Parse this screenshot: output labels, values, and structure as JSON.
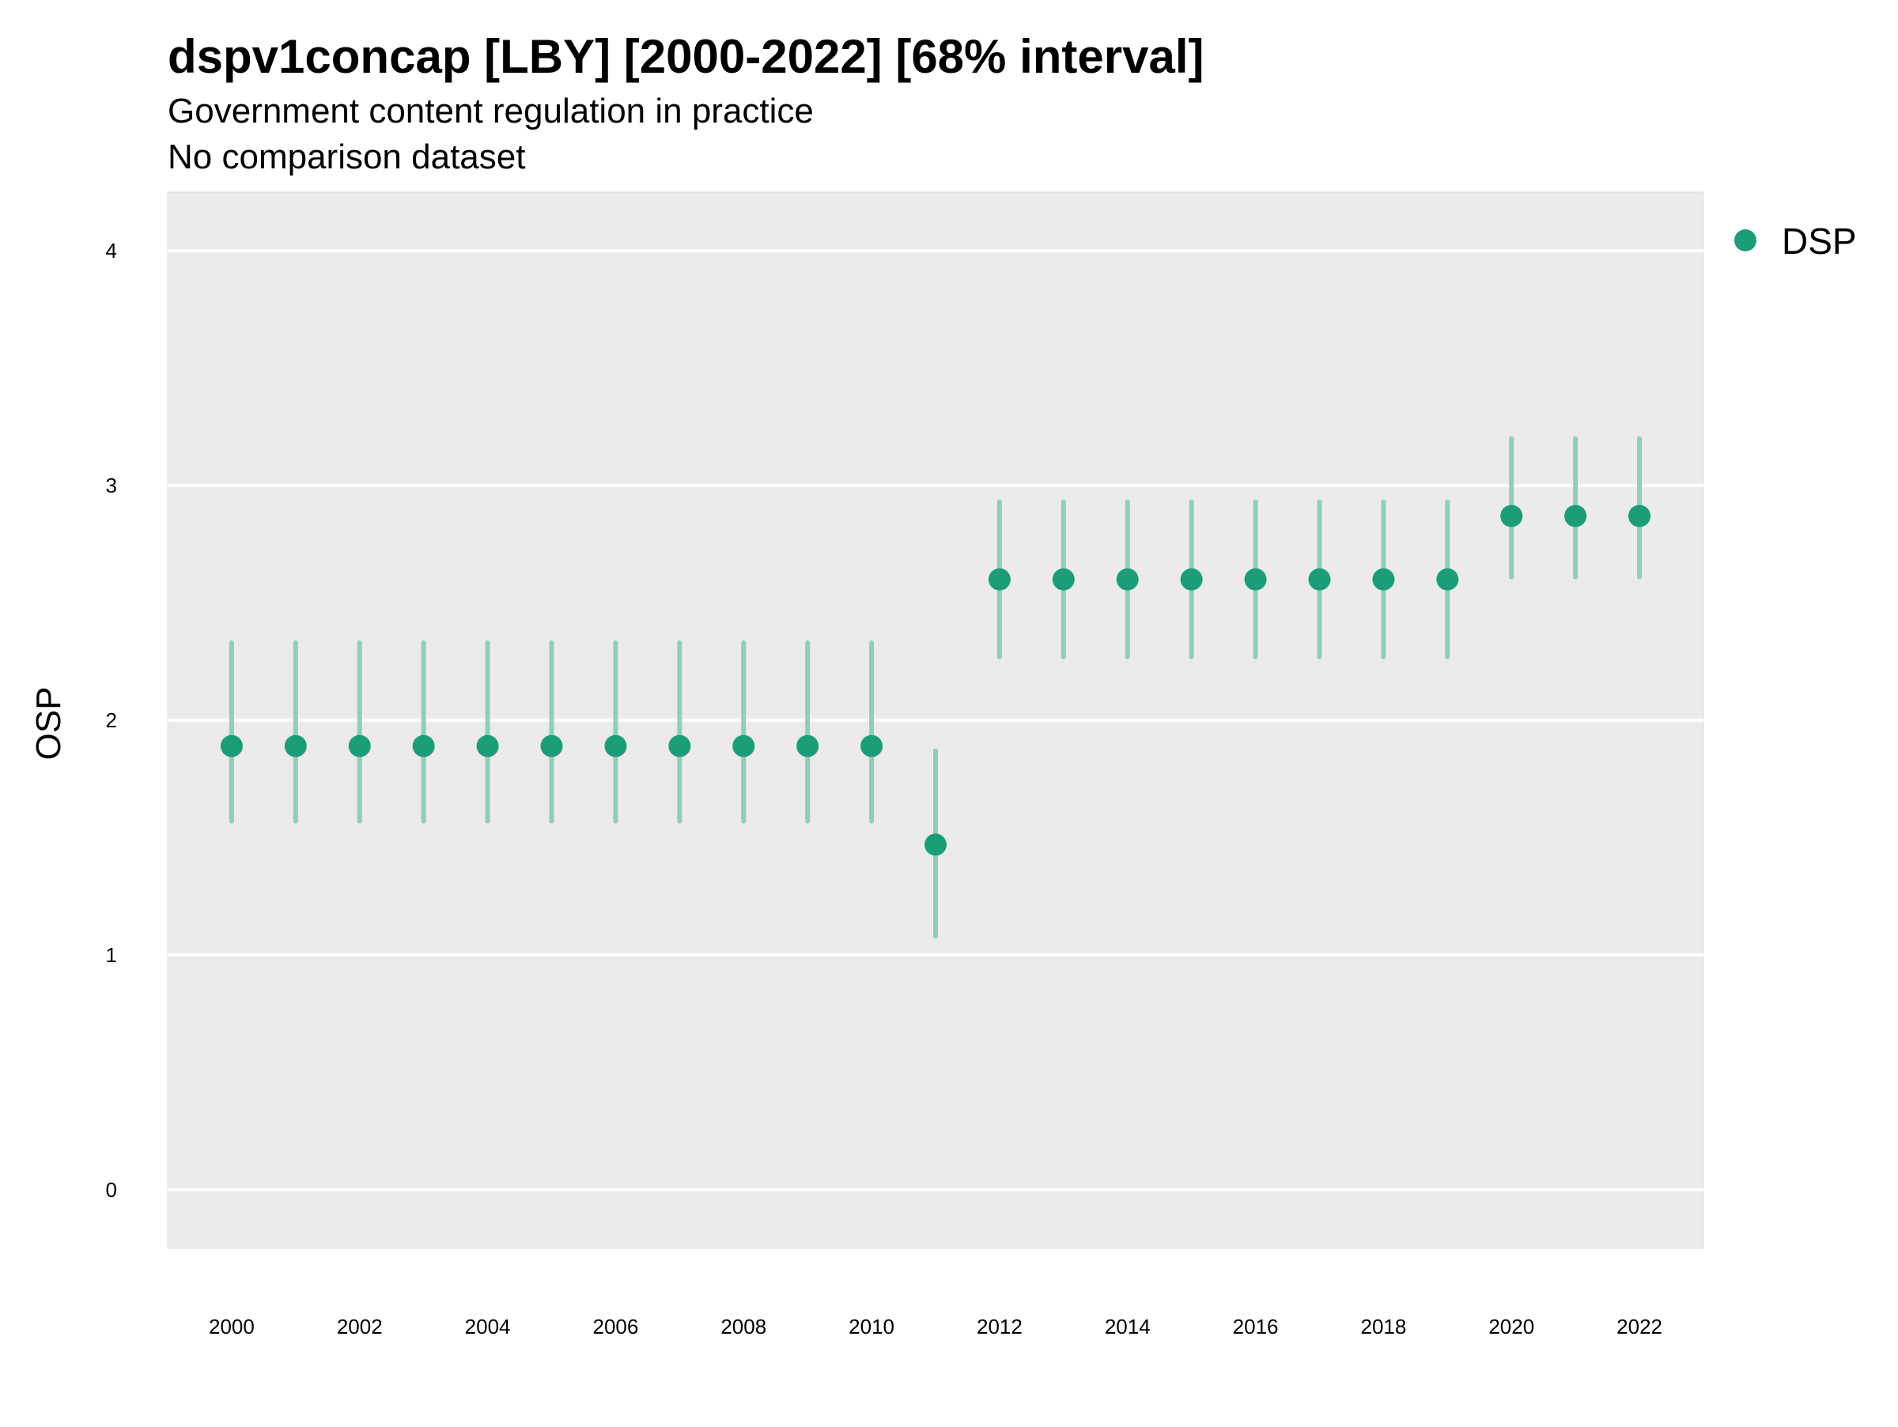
{
  "chart_data": {
    "type": "scatter",
    "title": "dspv1concap [LBY] [2000-2022] [68% interval]",
    "subtitle": "Government content regulation in practice",
    "caption": "No comparison dataset",
    "xlabel": "",
    "ylabel": "OSP",
    "ylim": [
      -0.25,
      4.25
    ],
    "xlim": [
      1999,
      2023
    ],
    "yticks": [
      "0",
      "1",
      "2",
      "3",
      "4"
    ],
    "xticks": [
      "2000",
      "2002",
      "2004",
      "2006",
      "2008",
      "2010",
      "2012",
      "2014",
      "2016",
      "2018",
      "2020",
      "2022"
    ],
    "grid": true,
    "legend_position": "right",
    "colors": {
      "series": "#1b9e77",
      "interval": "#8fcfb6",
      "panel": "#ebebeb",
      "grid": "#ffffff"
    },
    "series": [
      {
        "name": "DSP",
        "x": [
          2000,
          2001,
          2002,
          2003,
          2004,
          2005,
          2006,
          2007,
          2008,
          2009,
          2010,
          2011,
          2012,
          2013,
          2014,
          2015,
          2016,
          2017,
          2018,
          2019,
          2020,
          2021,
          2022
        ],
        "y": [
          1.89,
          1.89,
          1.89,
          1.89,
          1.89,
          1.89,
          1.89,
          1.89,
          1.89,
          1.89,
          1.89,
          1.47,
          2.6,
          2.6,
          2.6,
          2.6,
          2.6,
          2.6,
          2.6,
          2.6,
          2.87,
          2.87,
          2.87
        ],
        "lower": [
          1.57,
          1.57,
          1.57,
          1.57,
          1.57,
          1.57,
          1.57,
          1.57,
          1.57,
          1.57,
          1.57,
          1.08,
          2.27,
          2.27,
          2.27,
          2.27,
          2.27,
          2.27,
          2.27,
          2.27,
          2.61,
          2.61,
          2.61
        ],
        "upper": [
          2.33,
          2.33,
          2.33,
          2.33,
          2.33,
          2.33,
          2.33,
          2.33,
          2.33,
          2.33,
          2.33,
          1.87,
          2.93,
          2.93,
          2.93,
          2.93,
          2.93,
          2.93,
          2.93,
          2.93,
          3.2,
          3.2,
          3.2
        ]
      }
    ]
  }
}
